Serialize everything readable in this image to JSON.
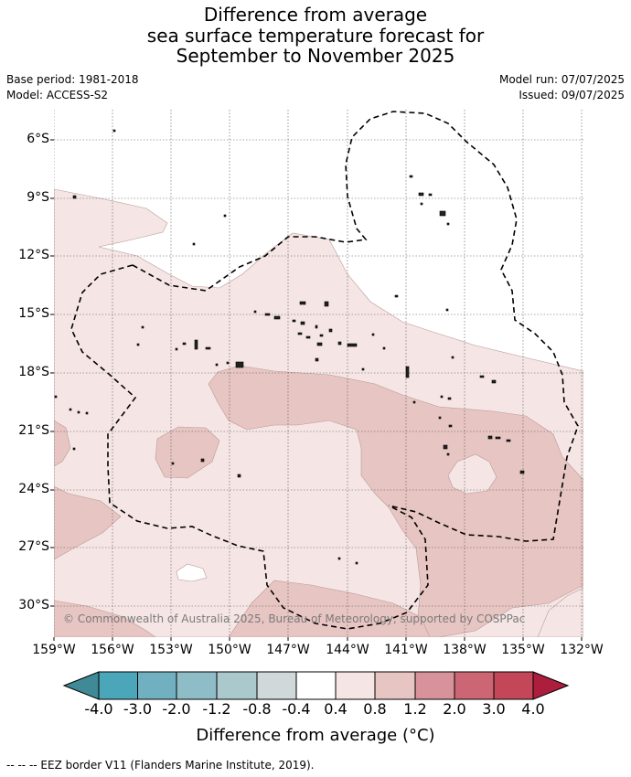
{
  "title": {
    "line1": "Difference from average",
    "line2": "sea surface temperature forecast for",
    "line3": "September to November 2025"
  },
  "meta": {
    "base_period": "Base period: 1981-2018",
    "model": "Model: ACCESS-S2",
    "model_run": "Model run: 07/07/2025",
    "issued": "Issued: 09/07/2025"
  },
  "map": {
    "lat_labels": [
      "6°S",
      "9°S",
      "12°S",
      "15°S",
      "18°S",
      "21°S",
      "24°S",
      "27°S",
      "30°S"
    ],
    "lon_labels": [
      "159°W",
      "156°W",
      "153°W",
      "150°W",
      "147°W",
      "144°W",
      "141°W",
      "138°W",
      "135°W",
      "132°W"
    ],
    "copyright": "© Commonwealth of Australia 2025, Bureau of Meteorology, supported by COSPPac",
    "colors": {
      "band_0p4_0p8": "#f5e6e5",
      "band_0p8_1p2": "#e7c5c2",
      "neutral": "#ffffff",
      "eez_line": "#000000"
    }
  },
  "colorbar": {
    "labels": [
      "-4.0",
      "-3.0",
      "-2.0",
      "-1.2",
      "-0.8",
      "-0.4",
      "0.4",
      "0.8",
      "1.2",
      "2.0",
      "3.0",
      "4.0"
    ],
    "colors": [
      "#3f8a96",
      "#4aa6b8",
      "#71b0c0",
      "#8fbdc7",
      "#abc9cd",
      "#d0d8da",
      "#ffffff",
      "#f5e6e5",
      "#e7c5c2",
      "#d8939a",
      "#cd6674",
      "#c34759",
      "#ad1e3d"
    ],
    "title": "Difference from average (°C)"
  },
  "footer": "--  --  -- EEZ border V11 (Flanders Marine Institute, 2019)."
}
